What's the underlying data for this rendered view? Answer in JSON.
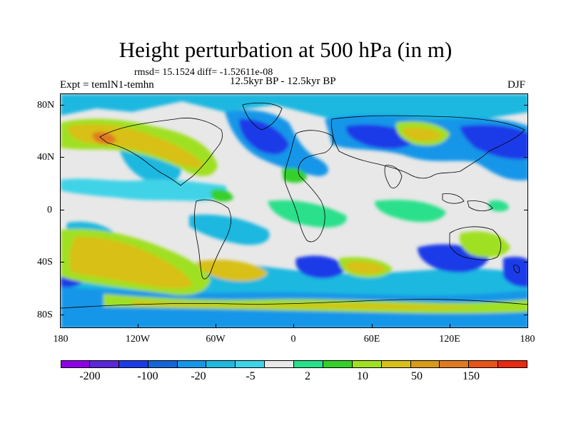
{
  "title": "Height perturbation at 500 hPa (in m)",
  "stats": "rmsd= 15.1524 diff= -1.52611e-08",
  "period": "12.5kyr BP - 12.5kyr BP",
  "experiment": "Expt = temlN1-temhn",
  "season": "DJF",
  "y_ticks": [
    "80N",
    "40N",
    "0",
    "40S",
    "80S"
  ],
  "x_ticks": [
    "180",
    "120W",
    "60W",
    "0",
    "60E",
    "120E",
    "180"
  ],
  "colorbar": {
    "labels": [
      "-200",
      "-100",
      "-20",
      "-5",
      "2",
      "10",
      "50",
      "150"
    ],
    "colors": [
      "#8f00e8",
      "#5a28d8",
      "#1c3be8",
      "#1565d8",
      "#1596e8",
      "#1fb8e0",
      "#3fd3e8",
      "#e8e8e8",
      "#29e08a",
      "#36d02a",
      "#a0e020",
      "#d8c018",
      "#d89a18",
      "#e07a20",
      "#e85418",
      "#e82a10"
    ]
  },
  "palette": {
    "land_outline": "#000000",
    "neutral": "#e8e8e8",
    "blue_dark": "#1c3be8",
    "blue": "#1596e8",
    "cyan": "#3fd3e8",
    "green": "#36d02a",
    "lime": "#a0e020",
    "yellow": "#d8c018",
    "orange": "#d89a18"
  }
}
